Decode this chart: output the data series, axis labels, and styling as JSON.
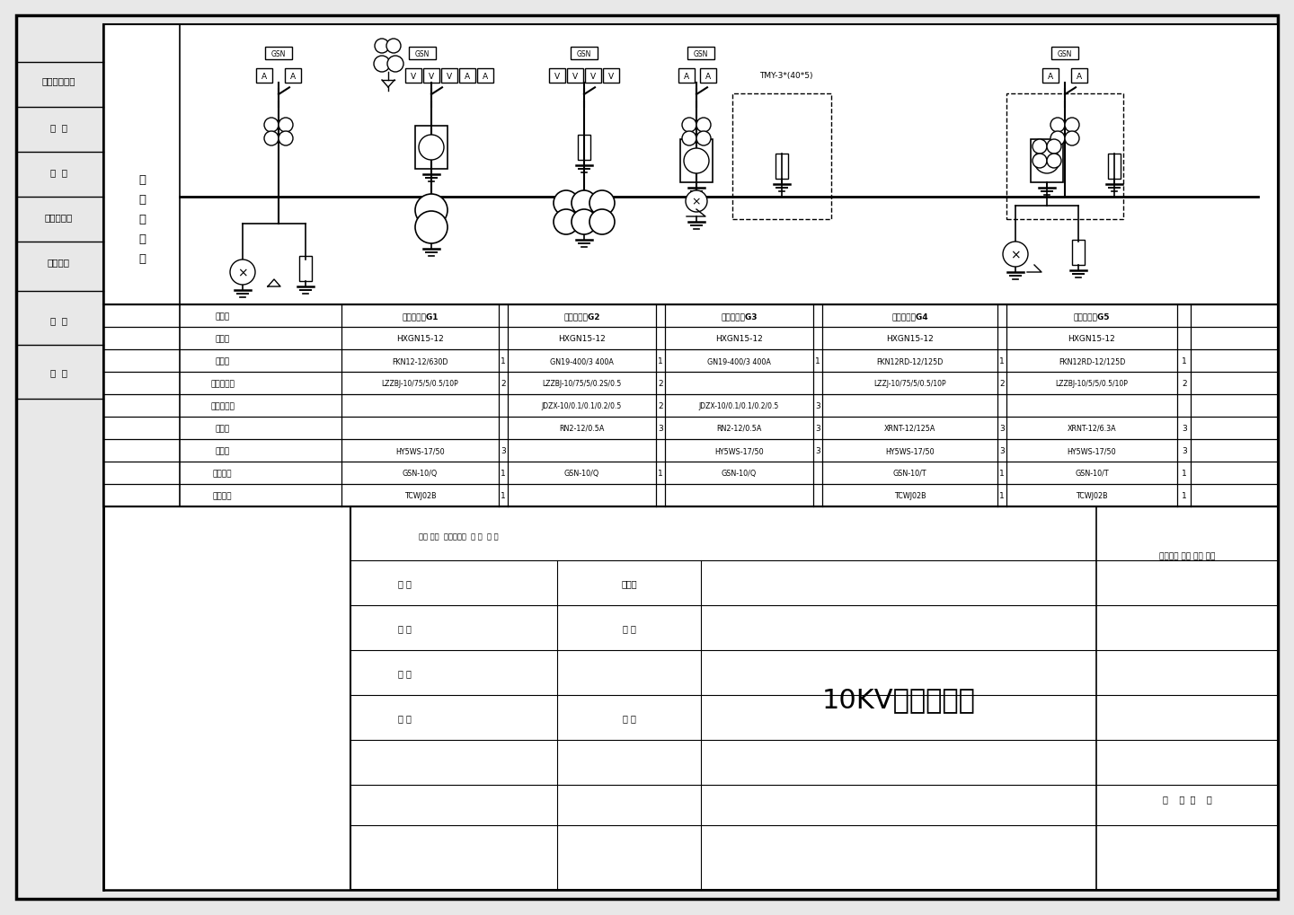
{
  "bg_color": "#e8e8e8",
  "paper_color": "#ffffff",
  "line_color": "#000000",
  "row_labels": [
    "柜名称",
    "柜型号",
    "断路器",
    "电流互感器",
    "电压互感器",
    "避雷器",
    "避雷器",
    "接地装置",
    "带电显示"
  ],
  "panel_names": [
    "高压开关柜G1",
    "高压开关柜G2",
    "电压互感器G3",
    "高压开关柜G4",
    "高压开关柜G5"
  ],
  "models": [
    "HXGN15-12",
    "HXGN15-12",
    "HXGN15-12",
    "HXGN15-12",
    "HXGN15-12"
  ],
  "breakers": [
    "FKN12-12/630D",
    "GN19-400/3 400A",
    "GN19-400/3 400A",
    "FKN12RD-12/125D",
    "FKN12RD-12/125D"
  ],
  "breaker_qty": [
    "1",
    "1",
    "1",
    "1",
    "1"
  ],
  "cts": [
    "LZZBJ-10/75/5/0.5/10P",
    "LZZBJ-10/75/5/0.2S/0.5",
    "",
    "LZZJ-10/75/5/0.5/10P",
    "LZZBJ-10/5/5/0.5/10P"
  ],
  "ct_qty": [
    "2",
    "2",
    "",
    "2",
    "2"
  ],
  "vts": [
    "",
    "JDZX-10/0.1/0.1/0.2/0.5",
    "JDZX-10/0.1/0.1/0.2/0.5",
    "",
    ""
  ],
  "vt_qty": [
    "",
    "2",
    "3",
    "",
    ""
  ],
  "fuses": [
    "",
    "RN2-12/0.5A",
    "RN2-12/0.5A",
    "XRNT-12/125A",
    "XRNT-12/6.3A"
  ],
  "fuse_qty": [
    "",
    "3",
    "3",
    "3",
    "3"
  ],
  "arresters": [
    "HY5WS-17/50",
    "",
    "HY5WS-17/50",
    "HY5WS-17/50",
    "HY5WS-17/50"
  ],
  "arrester_qty": [
    "3",
    "",
    "3",
    "3",
    "3"
  ],
  "gsns": [
    "GSN-10/Q",
    "GSN-10/Q",
    "GSN-10/Q",
    "GSN-10/T",
    "GSN-10/T"
  ],
  "gsn_qty": [
    "1",
    "1",
    "",
    "1",
    "1"
  ],
  "tcwjs": [
    "TCWJ02B",
    "",
    "",
    "TCWJ02B",
    "TCWJ02B"
  ],
  "tcwj_qty": [
    "1",
    "",
    "",
    "1",
    "1"
  ],
  "tmy_label": "TMY-3*(40*5)",
  "main_title": "10KV一次系统图",
  "left_chars": [
    "一",
    "次",
    "原",
    "理",
    "图"
  ],
  "sidebar_labels": [
    "借通用件登记",
    "描  图",
    "描  板",
    "旧底图总号",
    "底图总号",
    "签  字",
    "日  期"
  ],
  "title_block_labels": [
    "标记 处数  更改文件号  签 字  日 期",
    "设 计",
    "标准化",
    "绘 图",
    "审 定",
    "审 核",
    "工 艺",
    "日 期"
  ],
  "right_block_labels": [
    "图样标记 数量 重量 比例",
    "共    张  第    张"
  ]
}
